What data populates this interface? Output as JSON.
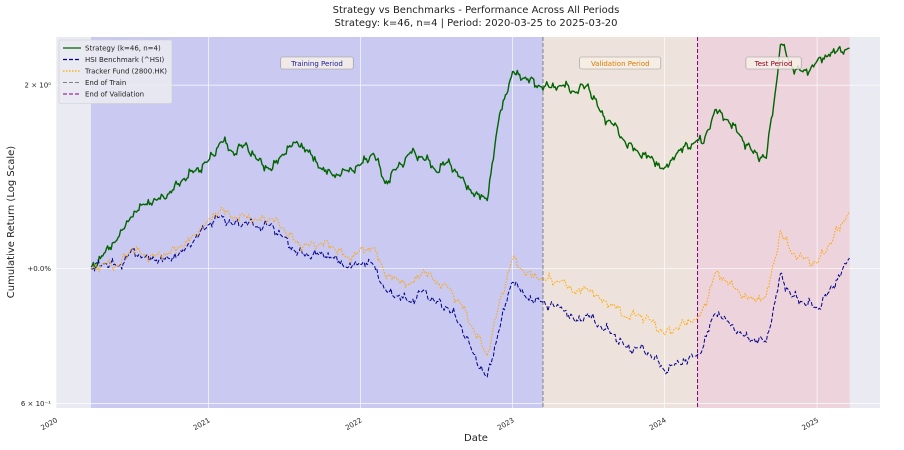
{
  "chart_data": {
    "type": "line",
    "title": "Strategy vs Benchmarks - Performance Across All Periods",
    "subtitle": "Strategy: k=46, n=4 | Period: 2020-03-25 to 2025-03-20",
    "xlabel": "Date",
    "ylabel": "Cumulative Return (Log Scale)",
    "y_scale": "log",
    "ylim": [
      0.59,
      2.4
    ],
    "xlim": [
      "2020-01-01",
      "2025-06-01"
    ],
    "grid": true,
    "legend_position": "upper-left",
    "x_ticks": [
      "2020",
      "2021",
      "2022",
      "2023",
      "2024",
      "2025"
    ],
    "y_ticks": [
      {
        "value": 0.6,
        "label": "6 × 10⁻¹"
      },
      {
        "value": 1.0,
        "label": "+0.0%"
      },
      {
        "value": 2.0,
        "label": "2 × 10⁰"
      }
    ],
    "periods": [
      {
        "name": "Training Period",
        "start": "2020-03-25",
        "end": "2023-03-15",
        "color": "#8c8cf0"
      },
      {
        "name": "Validation Period",
        "start": "2023-03-15",
        "end": "2024-03-20",
        "color": "#f5d7b4"
      },
      {
        "name": "Test Period",
        "start": "2024-03-20",
        "end": "2025-03-20",
        "color": "#f0a8b4"
      }
    ],
    "vlines": [
      {
        "name": "End of Train",
        "date": "2023-03-15",
        "color": "#808080"
      },
      {
        "name": "End of Validation",
        "date": "2024-03-20",
        "color": "#800080"
      }
    ],
    "series": [
      {
        "name": "Strategy (k=46, n=4)",
        "color": "#006400",
        "style": "solid",
        "points": [
          [
            "2020-03-25",
            1.0
          ],
          [
            "2020-05-01",
            1.07
          ],
          [
            "2020-06-01",
            1.13
          ],
          [
            "2020-07-01",
            1.22
          ],
          [
            "2020-08-01",
            1.28
          ],
          [
            "2020-09-01",
            1.3
          ],
          [
            "2020-10-01",
            1.33
          ],
          [
            "2020-11-01",
            1.4
          ],
          [
            "2020-12-01",
            1.45
          ],
          [
            "2021-01-01",
            1.5
          ],
          [
            "2021-02-01",
            1.62
          ],
          [
            "2021-03-01",
            1.55
          ],
          [
            "2021-04-01",
            1.6
          ],
          [
            "2021-05-01",
            1.5
          ],
          [
            "2021-06-01",
            1.45
          ],
          [
            "2021-07-01",
            1.55
          ],
          [
            "2021-08-01",
            1.62
          ],
          [
            "2021-09-01",
            1.55
          ],
          [
            "2021-10-01",
            1.45
          ],
          [
            "2021-11-01",
            1.42
          ],
          [
            "2021-12-01",
            1.45
          ],
          [
            "2022-01-01",
            1.48
          ],
          [
            "2022-02-01",
            1.55
          ],
          [
            "2022-03-01",
            1.38
          ],
          [
            "2022-04-01",
            1.47
          ],
          [
            "2022-05-01",
            1.55
          ],
          [
            "2022-06-01",
            1.52
          ],
          [
            "2022-07-01",
            1.45
          ],
          [
            "2022-08-01",
            1.5
          ],
          [
            "2022-09-01",
            1.4
          ],
          [
            "2022-10-01",
            1.32
          ],
          [
            "2022-11-01",
            1.3
          ],
          [
            "2022-12-01",
            1.8
          ],
          [
            "2023-01-01",
            2.1
          ],
          [
            "2023-02-01",
            2.05
          ],
          [
            "2023-03-15",
            1.98
          ],
          [
            "2023-05-01",
            2.0
          ],
          [
            "2023-06-01",
            1.95
          ],
          [
            "2023-07-01",
            2.0
          ],
          [
            "2023-08-01",
            1.8
          ],
          [
            "2023-09-01",
            1.72
          ],
          [
            "2023-10-01",
            1.6
          ],
          [
            "2023-11-01",
            1.55
          ],
          [
            "2023-12-01",
            1.52
          ],
          [
            "2024-01-01",
            1.45
          ],
          [
            "2024-02-01",
            1.55
          ],
          [
            "2024-03-20",
            1.62
          ],
          [
            "2024-04-01",
            1.6
          ],
          [
            "2024-05-01",
            1.82
          ],
          [
            "2024-06-01",
            1.75
          ],
          [
            "2024-07-01",
            1.65
          ],
          [
            "2024-08-01",
            1.55
          ],
          [
            "2024-09-01",
            1.52
          ],
          [
            "2024-09-25",
            2.0
          ],
          [
            "2024-10-05",
            2.35
          ],
          [
            "2024-11-01",
            2.15
          ],
          [
            "2024-12-01",
            2.1
          ],
          [
            "2025-01-01",
            2.18
          ],
          [
            "2025-02-01",
            2.25
          ],
          [
            "2025-03-20",
            2.3
          ]
        ]
      },
      {
        "name": "HSI Benchmark (^HSI)",
        "color": "#00008b",
        "style": "dashed",
        "points": [
          [
            "2020-03-25",
            1.0
          ],
          [
            "2020-05-01",
            1.02
          ],
          [
            "2020-06-01",
            1.01
          ],
          [
            "2020-07-01",
            1.07
          ],
          [
            "2020-08-01",
            1.04
          ],
          [
            "2020-09-01",
            1.03
          ],
          [
            "2020-10-01",
            1.04
          ],
          [
            "2020-11-01",
            1.07
          ],
          [
            "2020-12-01",
            1.12
          ],
          [
            "2021-01-01",
            1.18
          ],
          [
            "2021-02-01",
            1.22
          ],
          [
            "2021-03-01",
            1.18
          ],
          [
            "2021-04-01",
            1.19
          ],
          [
            "2021-05-01",
            1.17
          ],
          [
            "2021-06-01",
            1.18
          ],
          [
            "2021-07-01",
            1.12
          ],
          [
            "2021-08-01",
            1.06
          ],
          [
            "2021-09-01",
            1.05
          ],
          [
            "2021-10-01",
            1.06
          ],
          [
            "2021-11-01",
            1.04
          ],
          [
            "2021-12-01",
            1.0
          ],
          [
            "2022-01-01",
            1.02
          ],
          [
            "2022-02-01",
            1.02
          ],
          [
            "2022-03-01",
            0.92
          ],
          [
            "2022-04-01",
            0.9
          ],
          [
            "2022-05-01",
            0.88
          ],
          [
            "2022-06-01",
            0.92
          ],
          [
            "2022-07-01",
            0.88
          ],
          [
            "2022-08-01",
            0.86
          ],
          [
            "2022-09-01",
            0.8
          ],
          [
            "2022-10-01",
            0.72
          ],
          [
            "2022-11-01",
            0.66
          ],
          [
            "2022-12-01",
            0.8
          ],
          [
            "2023-01-01",
            0.96
          ],
          [
            "2023-02-01",
            0.9
          ],
          [
            "2023-03-15",
            0.88
          ],
          [
            "2023-05-01",
            0.86
          ],
          [
            "2023-06-01",
            0.82
          ],
          [
            "2023-07-01",
            0.84
          ],
          [
            "2023-08-01",
            0.8
          ],
          [
            "2023-09-01",
            0.78
          ],
          [
            "2023-10-01",
            0.74
          ],
          [
            "2023-11-01",
            0.74
          ],
          [
            "2023-12-01",
            0.72
          ],
          [
            "2024-01-01",
            0.68
          ],
          [
            "2024-02-01",
            0.7
          ],
          [
            "2024-03-20",
            0.72
          ],
          [
            "2024-04-01",
            0.74
          ],
          [
            "2024-05-01",
            0.85
          ],
          [
            "2024-06-01",
            0.82
          ],
          [
            "2024-07-01",
            0.78
          ],
          [
            "2024-08-01",
            0.76
          ],
          [
            "2024-09-01",
            0.76
          ],
          [
            "2024-09-25",
            0.9
          ],
          [
            "2024-10-05",
            0.98
          ],
          [
            "2024-11-01",
            0.9
          ],
          [
            "2024-12-01",
            0.88
          ],
          [
            "2025-01-01",
            0.86
          ],
          [
            "2025-02-01",
            0.92
          ],
          [
            "2025-03-20",
            1.04
          ]
        ]
      },
      {
        "name": "Tracker Fund (2800.HK)",
        "color": "#ffa500",
        "style": "dotted",
        "points": [
          [
            "2020-03-25",
            1.0
          ],
          [
            "2020-05-01",
            1.02
          ],
          [
            "2020-06-01",
            1.01
          ],
          [
            "2020-07-01",
            1.08
          ],
          [
            "2020-08-01",
            1.05
          ],
          [
            "2020-09-01",
            1.05
          ],
          [
            "2020-10-01",
            1.06
          ],
          [
            "2020-11-01",
            1.09
          ],
          [
            "2020-12-01",
            1.14
          ],
          [
            "2021-01-01",
            1.2
          ],
          [
            "2021-02-01",
            1.25
          ],
          [
            "2021-03-01",
            1.21
          ],
          [
            "2021-04-01",
            1.22
          ],
          [
            "2021-05-01",
            1.2
          ],
          [
            "2021-06-01",
            1.21
          ],
          [
            "2021-07-01",
            1.16
          ],
          [
            "2021-08-01",
            1.1
          ],
          [
            "2021-09-01",
            1.09
          ],
          [
            "2021-10-01",
            1.1
          ],
          [
            "2021-11-01",
            1.08
          ],
          [
            "2021-12-01",
            1.04
          ],
          [
            "2022-01-01",
            1.07
          ],
          [
            "2022-02-01",
            1.08
          ],
          [
            "2022-03-01",
            0.98
          ],
          [
            "2022-04-01",
            0.96
          ],
          [
            "2022-05-01",
            0.94
          ],
          [
            "2022-06-01",
            0.99
          ],
          [
            "2022-07-01",
            0.95
          ],
          [
            "2022-08-01",
            0.93
          ],
          [
            "2022-09-01",
            0.87
          ],
          [
            "2022-10-01",
            0.79
          ],
          [
            "2022-11-01",
            0.72
          ],
          [
            "2022-12-01",
            0.88
          ],
          [
            "2023-01-01",
            1.04
          ],
          [
            "2023-02-01",
            0.98
          ],
          [
            "2023-03-15",
            0.96
          ],
          [
            "2023-05-01",
            0.95
          ],
          [
            "2023-06-01",
            0.91
          ],
          [
            "2023-07-01",
            0.93
          ],
          [
            "2023-08-01",
            0.89
          ],
          [
            "2023-09-01",
            0.87
          ],
          [
            "2023-10-01",
            0.83
          ],
          [
            "2023-11-01",
            0.84
          ],
          [
            "2023-12-01",
            0.82
          ],
          [
            "2024-01-01",
            0.78
          ],
          [
            "2024-02-01",
            0.8
          ],
          [
            "2024-03-20",
            0.83
          ],
          [
            "2024-04-01",
            0.85
          ],
          [
            "2024-05-01",
            0.98
          ],
          [
            "2024-06-01",
            0.95
          ],
          [
            "2024-07-01",
            0.91
          ],
          [
            "2024-08-01",
            0.89
          ],
          [
            "2024-09-01",
            0.9
          ],
          [
            "2024-09-25",
            1.06
          ],
          [
            "2024-10-05",
            1.15
          ],
          [
            "2024-11-01",
            1.06
          ],
          [
            "2024-12-01",
            1.04
          ],
          [
            "2025-01-01",
            1.02
          ],
          [
            "2025-02-01",
            1.1
          ],
          [
            "2025-03-20",
            1.24
          ]
        ]
      }
    ]
  }
}
